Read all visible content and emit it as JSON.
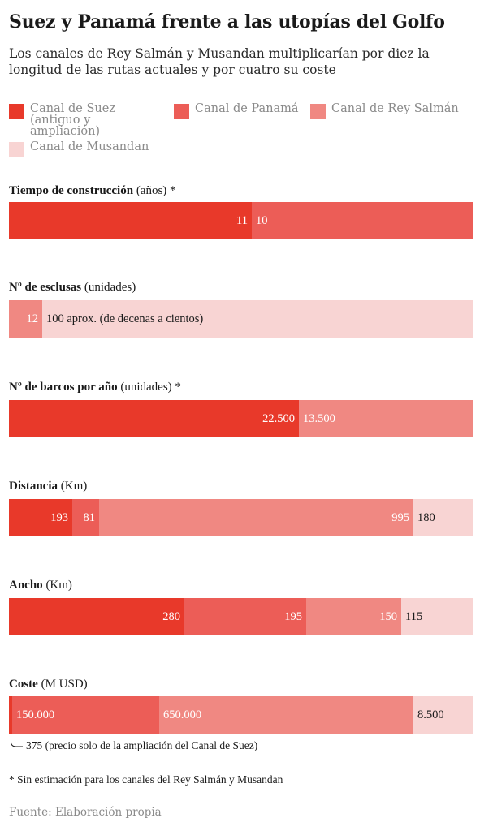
{
  "title": "Suez y Panamá frente a las utopías del Golfo",
  "subtitle": "Los canales de Rey Salmán y Musandan multiplicarían por diez la longitud de las rutas actuales y por cuatro su coste",
  "colors": {
    "suez": "#e8392a",
    "panama": "#ec5d57",
    "rey_salman": "#f08882",
    "musandan": "#f8d4d3"
  },
  "legend": [
    {
      "label": "Canal de Suez (antiguo y ampliación)",
      "color": "#e8392a"
    },
    {
      "label": "Canal de Panamá",
      "color": "#ec5d57"
    },
    {
      "label": "Canal de Rey Salmán",
      "color": "#f08882"
    },
    {
      "label": "Canal de Musandan",
      "color": "#f8d4d3"
    }
  ],
  "chart_data": {
    "type": "bar",
    "orientation": "horizontal-stacked-proportional",
    "series_names": [
      "Canal de Suez (antiguo y ampliación)",
      "Canal de Panamá",
      "Canal de Rey Salmán",
      "Canal de Musandan"
    ],
    "sections": [
      {
        "bold": "Tiempo de construcción",
        "unit": " (años) *",
        "segments": [
          {
            "series": "Canal de Suez (antiguo y ampliación)",
            "value": 11,
            "label": "11"
          },
          {
            "series": "Canal de Panamá",
            "value": 10,
            "label": "10"
          }
        ]
      },
      {
        "bold": "Nº de esclusas",
        "unit": " (unidades)",
        "segments": [
          {
            "series": "Canal de Rey Salmán",
            "value": 12,
            "label": "12"
          },
          {
            "series": "Canal de Musandan",
            "value": 100,
            "label": "100 aprox. (de decenas a cientos)"
          }
        ]
      },
      {
        "bold": "Nº de barcos por año",
        "unit": " (unidades) *",
        "segments": [
          {
            "series": "Canal de Suez (antiguo y ampliación)",
            "value": 22500,
            "label": "22.500"
          },
          {
            "series": "Canal de Rey Salmán",
            "value": 13500,
            "label": "13.500"
          }
        ]
      },
      {
        "bold": "Distancia",
        "unit": " (Km)",
        "segments": [
          {
            "series": "Canal de Suez (antiguo y ampliación)",
            "value": 193,
            "label": "193"
          },
          {
            "series": "Canal de Panamá",
            "value": 81,
            "label": "81"
          },
          {
            "series": "Canal de Rey Salmán",
            "value": 995,
            "label": "995"
          },
          {
            "series": "Canal de Musandan",
            "value": 180,
            "label": "180"
          }
        ]
      },
      {
        "bold": "Ancho",
        "unit": " (Km)",
        "segments": [
          {
            "series": "Canal de Suez (antiguo y ampliación)",
            "value": 280,
            "label": "280"
          },
          {
            "series": "Canal de Panamá",
            "value": 195,
            "label": "195"
          },
          {
            "series": "Canal de Rey Salmán",
            "value": 150,
            "label": "150"
          },
          {
            "series": "Canal de Musandan",
            "value": 115,
            "label": "115"
          }
        ]
      },
      {
        "bold": "Coste",
        "unit": " (M USD)",
        "segments": [
          {
            "series": "Canal de Suez (antiguo y ampliación)",
            "value": 375,
            "label": ""
          },
          {
            "series": "Canal de Panamá",
            "value": 150000,
            "label": "150.000"
          },
          {
            "series": "Canal de Rey Salmán",
            "value": 650000,
            "label": "650.000"
          },
          {
            "series": "Canal de Musandan",
            "value": 8500,
            "label": "8.500"
          }
        ]
      }
    ]
  },
  "annotation": "375 (precio solo de la ampliación del Canal de Suez)",
  "footnote": "* Sin estimación para los canales del Rey Salmán y Musandan",
  "source": "Fuente: Elaboración propia"
}
